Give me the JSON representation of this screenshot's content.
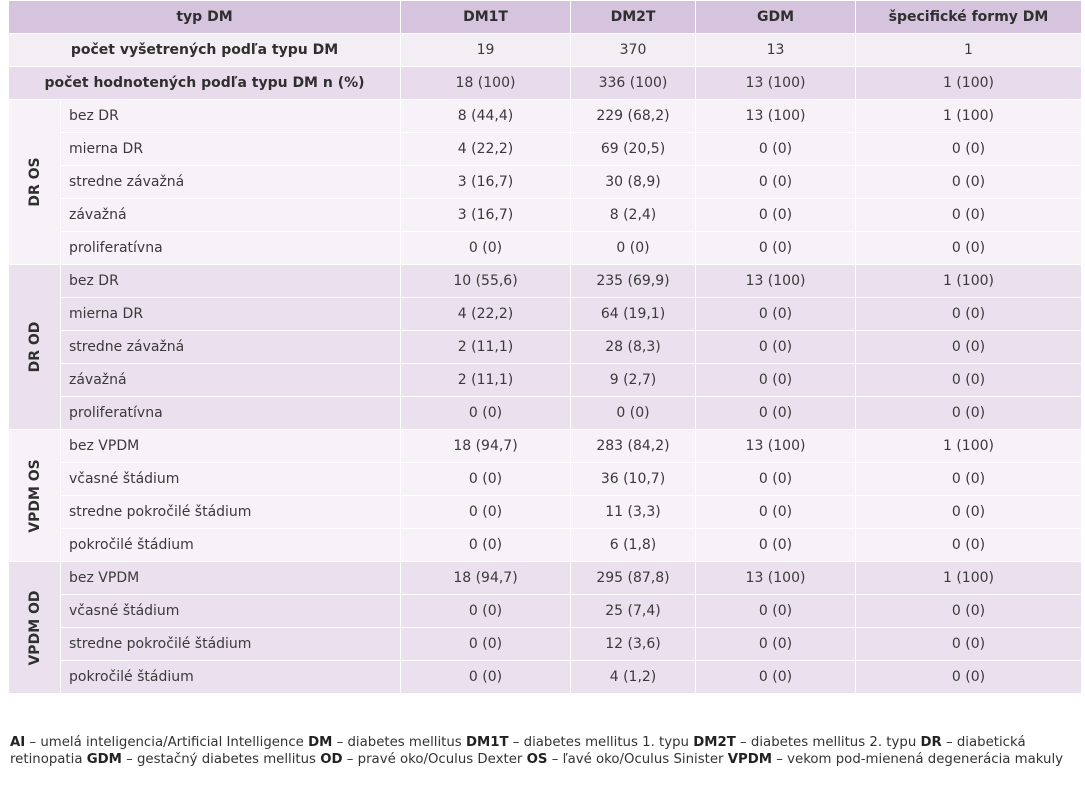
{
  "header": {
    "col0": "typ DM",
    "col1": "DM1T",
    "col2": "DM2T",
    "col3": "GDM",
    "col4": "špecifické formy DM"
  },
  "meta_rows": [
    {
      "label": "počet vyšetrených podľa typu DM",
      "values": [
        "19",
        "370",
        "13",
        "1"
      ]
    },
    {
      "label": "počet hodnotených podľa typu DM n (%)",
      "values": [
        "18 (100)",
        "336 (100)",
        "13 (100)",
        "1 (100)"
      ]
    }
  ],
  "groups": [
    {
      "label": "DR OS",
      "rows": [
        {
          "label": "bez DR",
          "values": [
            "8 (44,4)",
            "229 (68,2)",
            "13 (100)",
            "1 (100)"
          ]
        },
        {
          "label": "mierna DR",
          "values": [
            "4 (22,2)",
            "69 (20,5)",
            "0 (0)",
            "0 (0)"
          ]
        },
        {
          "label": "stredne závažná",
          "values": [
            "3 (16,7)",
            "30 (8,9)",
            "0 (0)",
            "0 (0)"
          ]
        },
        {
          "label": "závažná",
          "values": [
            "3 (16,7)",
            "8 (2,4)",
            "0 (0)",
            "0 (0)"
          ]
        },
        {
          "label": "proliferatívna",
          "values": [
            "0 (0)",
            "0 (0)",
            "0 (0)",
            "0 (0)"
          ]
        }
      ]
    },
    {
      "label": "DR OD",
      "rows": [
        {
          "label": "bez DR",
          "values": [
            "10 (55,6)",
            "235 (69,9)",
            "13 (100)",
            "1 (100)"
          ]
        },
        {
          "label": "mierna DR",
          "values": [
            "4 (22,2)",
            "64 (19,1)",
            "0 (0)",
            "0 (0)"
          ]
        },
        {
          "label": "stredne závažná",
          "values": [
            "2 (11,1)",
            "28 (8,3)",
            "0 (0)",
            "0 (0)"
          ]
        },
        {
          "label": "závažná",
          "values": [
            "2 (11,1)",
            "9 (2,7)",
            "0 (0)",
            "0 (0)"
          ]
        },
        {
          "label": "proliferatívna",
          "values": [
            "0 (0)",
            "0 (0)",
            "0 (0)",
            "0 (0)"
          ]
        }
      ]
    },
    {
      "label": "VPDM OS",
      "rows": [
        {
          "label": "bez VPDM",
          "values": [
            "18 (94,7)",
            "283 (84,2)",
            "13 (100)",
            "1 (100)"
          ]
        },
        {
          "label": "včasné štádium",
          "values": [
            "0 (0)",
            "36 (10,7)",
            "0 (0)",
            "0 (0)"
          ]
        },
        {
          "label": "stredne pokročilé štádium",
          "values": [
            "0 (0)",
            "11 (3,3)",
            "0 (0)",
            "0 (0)"
          ]
        },
        {
          "label": "pokročilé štádium",
          "values": [
            "0 (0)",
            "6 (1,8)",
            "0 (0)",
            "0 (0)"
          ]
        }
      ]
    },
    {
      "label": "VPDM OD",
      "rows": [
        {
          "label": "bez VPDM",
          "values": [
            "18 (94,7)",
            "295 (87,8)",
            "13 (100)",
            "1 (100)"
          ]
        },
        {
          "label": "včasné štádium",
          "values": [
            "0 (0)",
            "25 (7,4)",
            "0 (0)",
            "0 (0)"
          ]
        },
        {
          "label": "stredne pokročilé štádium",
          "values": [
            "0 (0)",
            "12 (3,6)",
            "0 (0)",
            "0 (0)"
          ]
        },
        {
          "label": "pokročilé štádium",
          "values": [
            "0 (0)",
            "4 (1,2)",
            "0 (0)",
            "0 (0)"
          ]
        }
      ]
    }
  ],
  "legend": [
    {
      "abbr": "AI",
      "text": " – umelá inteligencia/Artificial Intelligence "
    },
    {
      "abbr": "DM",
      "text": " – diabetes mellitus "
    },
    {
      "abbr": "DM1T",
      "text": " – diabetes mellitus 1. typu "
    },
    {
      "abbr": "DM2T",
      "text": " – diabetes mellitus 2. typu "
    },
    {
      "abbr": "DR",
      "text": " – diabetická retinopatia "
    },
    {
      "abbr": "GDM",
      "text": " – gestačný diabetes mellitus "
    },
    {
      "abbr": "OD",
      "text": " – pravé oko/Oculus Dexter "
    },
    {
      "abbr": "OS",
      "text": " – ľavé oko/Oculus Sinister "
    },
    {
      "abbr": "VPDM",
      "text": " – vekom pod-mienená degenerácia makuly"
    }
  ],
  "colors": {
    "header_bg": "#d6c3dd",
    "row_light": "#f3edf4",
    "row_mid": "#e8dcec"
  }
}
